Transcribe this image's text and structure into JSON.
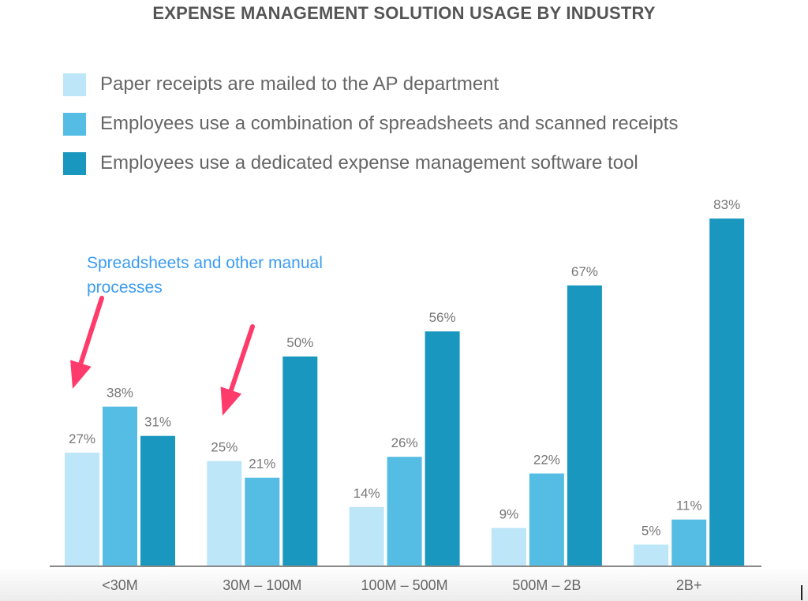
{
  "chart_data": {
    "type": "bar",
    "title": "EXPENSE MANAGEMENT SOLUTION USAGE BY INDUSTRY",
    "categories": [
      "<30M",
      "30M – 100M",
      "100M – 500M",
      "500M – 2B",
      "2B+"
    ],
    "series": [
      {
        "name": "Paper receipts are mailed to the AP department",
        "color": "#bde6f8",
        "values": [
          27,
          25,
          14,
          9,
          5
        ]
      },
      {
        "name": "Employees use a combination of spreadsheets and scanned receipts",
        "color": "#55bde3",
        "values": [
          38,
          21,
          26,
          22,
          11
        ]
      },
      {
        "name": "Employees use a dedicated expense management software tool",
        "color": "#1997bf",
        "values": [
          31,
          50,
          56,
          67,
          83
        ]
      }
    ],
    "value_suffix": "%",
    "ylim": [
      0,
      85
    ],
    "grid": false,
    "legend_position": "top-left",
    "annotation": {
      "text_line1": "Spreadsheets and other manual",
      "text_line2": "processes",
      "color": "#3b9cf0",
      "arrow_color": "#ff3b6b"
    }
  }
}
